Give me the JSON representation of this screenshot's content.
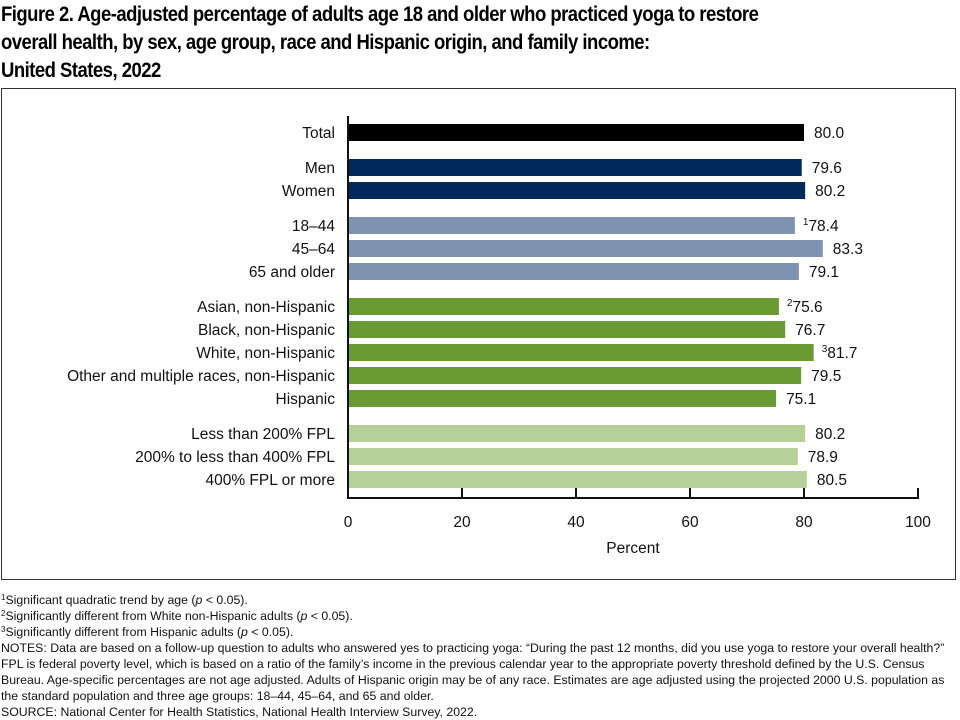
{
  "title": "Figure 2. Age-adjusted percentage of adults age 18 and older who practiced yoga to restore overall health, by sex, age group, race and Hispanic origin, and family income: United States, 2022",
  "title_lines": [
    "Figure 2. Age-adjusted percentage of adults age 18 and older who practiced yoga to restore",
    "overall health, by sex, age group, race and Hispanic origin, and family income:",
    "United States, 2022"
  ],
  "chart_data": {
    "type": "bar",
    "orientation": "horizontal",
    "title": "Figure 2. Age-adjusted percentage of adults age 18 and older who practiced yoga to restore overall health, by sex, age group, race and Hispanic origin, and family income: United States, 2022",
    "xlabel": "Percent",
    "ylabel": "",
    "xlim": [
      0,
      100
    ],
    "xticks": [
      0,
      20,
      40,
      60,
      80,
      100
    ],
    "grid": false,
    "legend": "none",
    "groups": [
      {
        "name": "Total",
        "color": "#000000",
        "bars": [
          {
            "label": "Total",
            "value": 80.0,
            "display": "80.0",
            "footnote": ""
          }
        ]
      },
      {
        "name": "Sex",
        "color": "#002a5c",
        "bars": [
          {
            "label": "Men",
            "value": 79.6,
            "display": "79.6",
            "footnote": ""
          },
          {
            "label": "Women",
            "value": 80.2,
            "display": "80.2",
            "footnote": ""
          }
        ]
      },
      {
        "name": "Age group",
        "color": "#7d93b0",
        "bars": [
          {
            "label": "18–44",
            "value": 78.4,
            "display": "78.4",
            "footnote": "1"
          },
          {
            "label": "45–64",
            "value": 83.3,
            "display": "83.3",
            "footnote": ""
          },
          {
            "label": "65 and older",
            "value": 79.1,
            "display": "79.1",
            "footnote": ""
          }
        ]
      },
      {
        "name": "Race and Hispanic origin",
        "color": "#6a9a34",
        "bars": [
          {
            "label": "Asian, non-Hispanic",
            "value": 75.6,
            "display": "75.6",
            "footnote": "2"
          },
          {
            "label": "Black, non-Hispanic",
            "value": 76.7,
            "display": "76.7",
            "footnote": ""
          },
          {
            "label": "White, non-Hispanic",
            "value": 81.7,
            "display": "81.7",
            "footnote": "3"
          },
          {
            "label": "Other and multiple races, non-Hispanic",
            "value": 79.5,
            "display": "79.5",
            "footnote": ""
          },
          {
            "label": "Hispanic",
            "value": 75.1,
            "display": "75.1",
            "footnote": ""
          }
        ]
      },
      {
        "name": "Family income",
        "color": "#b7d09a",
        "bars": [
          {
            "label": "Less than 200% FPL",
            "value": 80.2,
            "display": "80.2",
            "footnote": ""
          },
          {
            "label": "200% to less than 400% FPL",
            "value": 78.9,
            "display": "78.9",
            "footnote": ""
          },
          {
            "label": "400% FPL or more",
            "value": 80.5,
            "display": "80.5",
            "footnote": ""
          }
        ]
      }
    ]
  },
  "footnotes": [
    {
      "mark": "1",
      "text": "Significant quadratic trend by age (",
      "italic": "p",
      "after": " < 0.05)."
    },
    {
      "mark": "2",
      "text": "Significantly different from White non-Hispanic adults (",
      "italic": "p",
      "after": " < 0.05)."
    },
    {
      "mark": "3",
      "text": "Significantly different from Hispanic adults (",
      "italic": "p",
      "after": " < 0.05)."
    }
  ],
  "notes": "NOTES: Data are based on a follow-up question to adults who answered yes to practicing yoga: “During the past 12 months, did you use yoga to restore your overall health?” FPL is federal poverty level, which is based on a ratio of the family’s income in the previous calendar year to the appropriate poverty threshold defined by the U.S. Census Bureau. Age-specific percentages are not age adjusted. Adults of Hispanic origin may be of any race. Estimates are age adjusted using the projected 2000 U.S. population as the standard population and three age groups: 18–44, 45–64, and 65 and older.",
  "source": "SOURCE: National Center for Health Statistics, National Health Interview Survey, 2022."
}
